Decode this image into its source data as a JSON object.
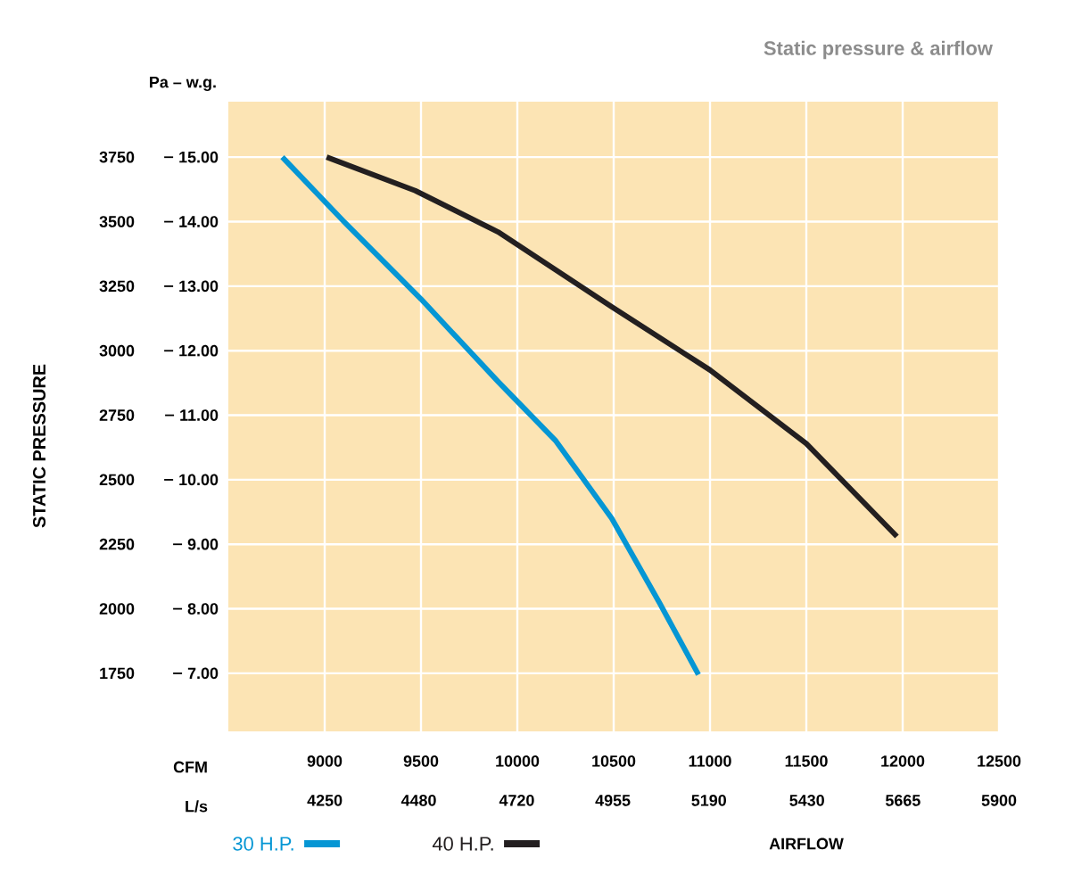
{
  "chart_data": {
    "type": "line",
    "title": "Static pressure & airflow",
    "xlabel": "AIRFLOW",
    "ylabel": "STATIC PRESSURE",
    "annotations": [
      "Pa – w.g.",
      "CFM",
      "L/s"
    ],
    "xlim": [
      8500,
      12500
    ],
    "xticks": [
      9000,
      9500,
      10000,
      10500,
      11000,
      11500,
      12000,
      12500
    ],
    "x2lim": [
      4014,
      5900
    ],
    "x2ticks": [
      4250,
      4480,
      4720,
      4955,
      5190,
      5430,
      5665,
      5900
    ],
    "ylim": [
      1525,
      3965
    ],
    "yticks": [
      1750,
      2000,
      2250,
      2500,
      2750,
      3000,
      3250,
      3500,
      3750
    ],
    "y2lim": [
      6.1,
      15.86
    ],
    "y2ticks": [
      {
        "value": 7,
        "label": "7.00"
      },
      {
        "value": 8,
        "label": "8.00"
      },
      {
        "value": 9,
        "label": "9.00"
      },
      {
        "value": 10,
        "label": "10.00"
      },
      {
        "value": 11,
        "label": "11.00"
      },
      {
        "value": 12,
        "label": "12.00"
      },
      {
        "value": 13,
        "label": "13.00"
      },
      {
        "value": 14,
        "label": "14.00"
      },
      {
        "value": 15,
        "label": "15.00"
      }
    ],
    "grid": true,
    "legend": "bottom left",
    "marker": "none",
    "line_style": "solid",
    "series": [
      {
        "name": "30 H.P.",
        "color": "#0596d4",
        "x": [
          8780,
          9100,
          9500,
          9900,
          10200,
          10490,
          10740,
          10940
        ],
        "values": [
          3750,
          3500,
          3200,
          2880,
          2650,
          2350,
          2020,
          1745
        ]
      },
      {
        "name": "40 H.P.",
        "color": "#231f20",
        "x": [
          9010,
          9470,
          9900,
          10490,
          11000,
          11500,
          11970
        ],
        "values": [
          3750,
          3620,
          3460,
          3170,
          2925,
          2640,
          2280
        ]
      }
    ]
  }
}
